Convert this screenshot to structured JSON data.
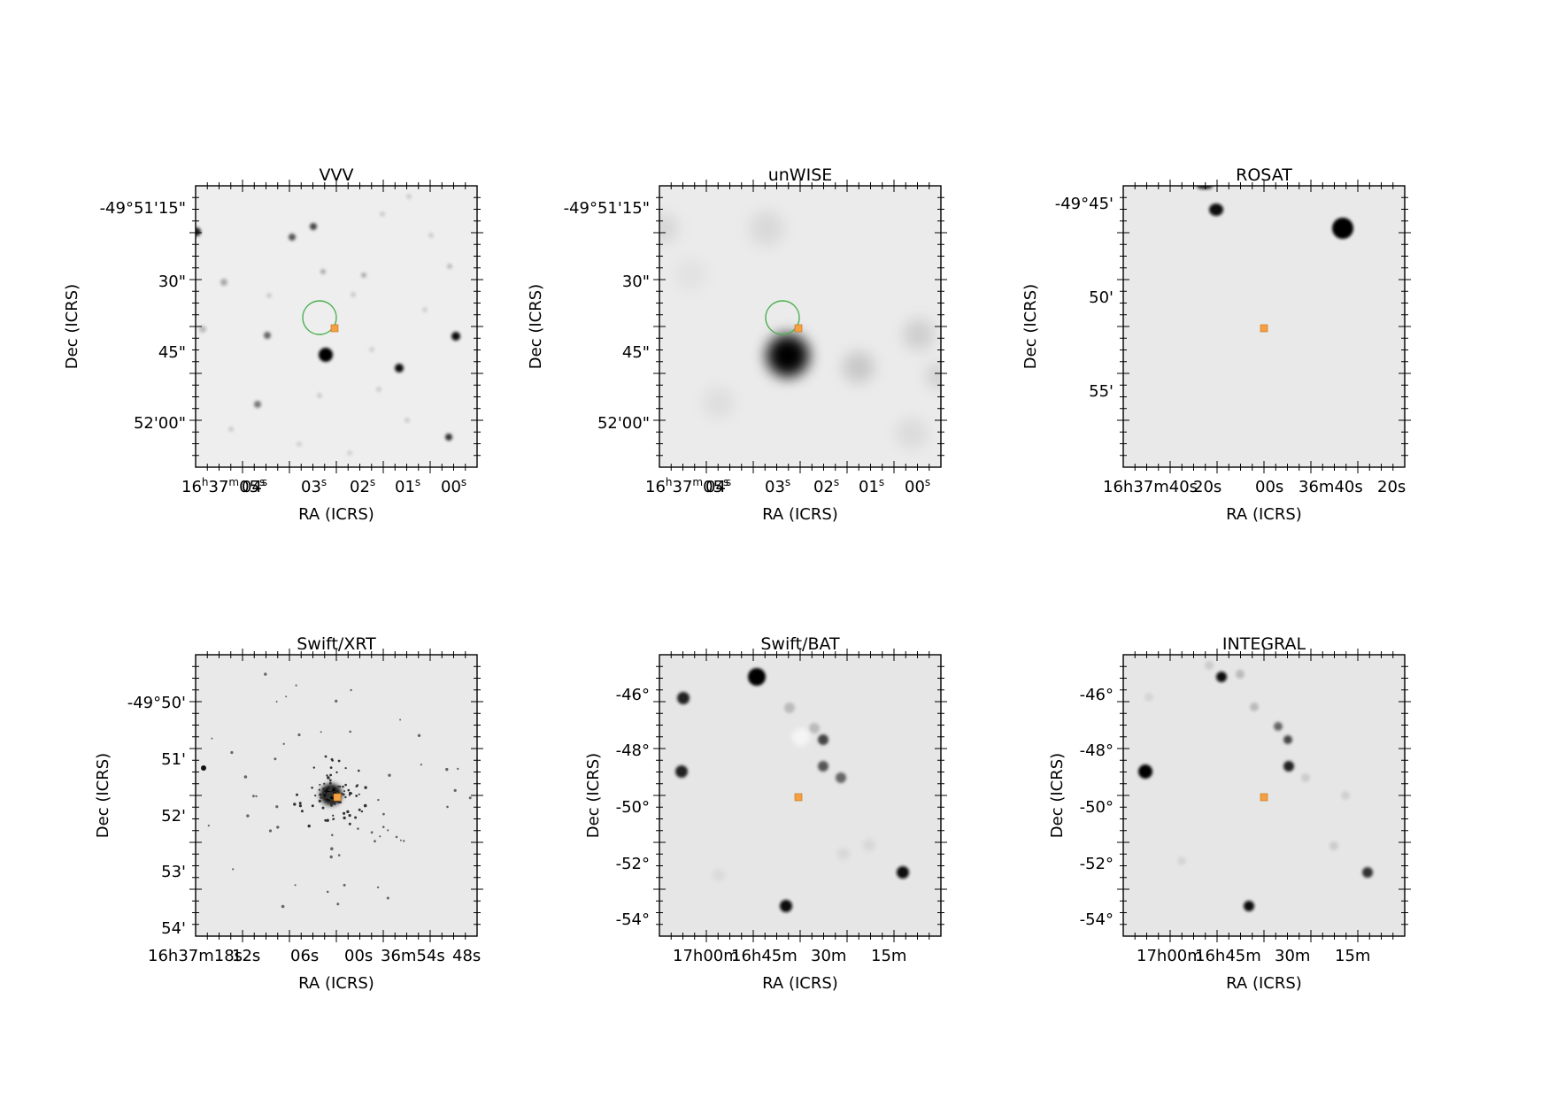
{
  "panels": [
    {
      "id": "vvv",
      "title": "VVV",
      "xlabel": "RA (ICRS)",
      "ylabel": "Dec (ICRS)",
      "xticks": [
        "04",
        "03",
        "02",
        "01",
        "00"
      ],
      "xtick_prefix": {
        "h": "16",
        "m": "37",
        "s": "05"
      },
      "yticks": [
        "-49°51'15\"",
        "30\"",
        "45\"",
        "52'00\""
      ],
      "background": "#eeeeee",
      "has_circle": true
    },
    {
      "id": "unwise",
      "title": "unWISE",
      "xlabel": "RA (ICRS)",
      "ylabel": "Dec (ICRS)",
      "xticks": [
        "04",
        "03",
        "02",
        "01",
        "00"
      ],
      "xtick_prefix": {
        "h": "16",
        "m": "37",
        "s": "05"
      },
      "yticks": [
        "-49°51'15\"",
        "30\"",
        "45\"",
        "52'00\""
      ],
      "background": "#ebebeb",
      "has_circle": true
    },
    {
      "id": "rosat",
      "title": "ROSAT",
      "xlabel": "RA (ICRS)",
      "ylabel": "Dec (ICRS)",
      "xticks_text": [
        "16h37m40s",
        "20s",
        "00s",
        "36m40s",
        "20s"
      ],
      "yticks": [
        "-49°45'",
        "50'",
        "55'"
      ],
      "background": "#e9e9e9",
      "has_circle": false
    },
    {
      "id": "swift-xrt",
      "title": "Swift/XRT",
      "xlabel": "RA (ICRS)",
      "ylabel": "Dec (ICRS)",
      "xticks_text": [
        "16h37m18s",
        "12s",
        "06s",
        "00s",
        "36m54s",
        "48s"
      ],
      "yticks": [
        "-49°50'",
        "51'",
        "52'",
        "53'",
        "54'"
      ],
      "background": "#e9e9e9",
      "has_circle": false
    },
    {
      "id": "swift-bat",
      "title": "Swift/BAT",
      "xlabel": "RA (ICRS)",
      "ylabel": "Dec (ICRS)",
      "xticks_text": [
        "17h00m",
        "16h45m",
        "30m",
        "15m"
      ],
      "yticks": [
        "-46°",
        "-48°",
        "-50°",
        "-52°",
        "-54°"
      ],
      "background": "#e6e6e6",
      "has_circle": false
    },
    {
      "id": "integral",
      "title": "INTEGRAL",
      "xlabel": "RA (ICRS)",
      "ylabel": "Dec (ICRS)",
      "xticks_text": [
        "17h00m",
        "16h45m",
        "30m",
        "15m"
      ],
      "yticks": [
        "-46°",
        "-48°",
        "-50°",
        "-52°",
        "-54°"
      ],
      "background": "#e6e6e6",
      "has_circle": false
    }
  ],
  "colors": {
    "marker": "#f5a042",
    "circle": "#4caf50",
    "frame": "#000000"
  }
}
